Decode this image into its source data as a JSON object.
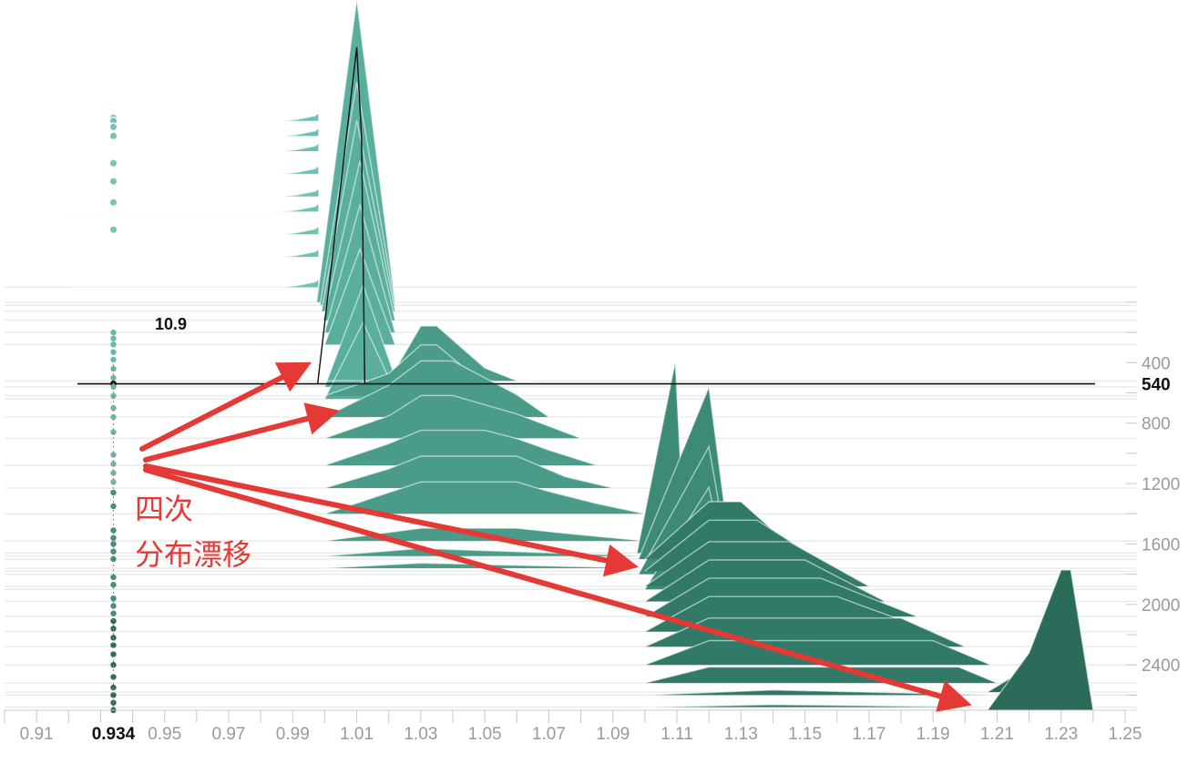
{
  "chart_data": {
    "type": "area",
    "title": "",
    "xlabel": "",
    "ylabel": "",
    "x_ticks": [
      "0.91",
      "0.934",
      "0.95",
      "0.97",
      "0.99",
      "1.01",
      "1.03",
      "1.05",
      "1.07",
      "1.09",
      "1.11",
      "1.13",
      "1.15",
      "1.17",
      "1.19",
      "1.21",
      "1.23",
      "1.25"
    ],
    "x_tick_values": [
      0.91,
      0.934,
      0.95,
      0.97,
      0.99,
      1.01,
      1.03,
      1.05,
      1.07,
      1.09,
      1.11,
      1.13,
      1.15,
      1.17,
      1.19,
      1.21,
      1.23,
      1.25
    ],
    "xlim": [
      0.9,
      1.25
    ],
    "y_ticks": [
      "400",
      "540",
      "800",
      "1200",
      "1600",
      "2000",
      "2400"
    ],
    "y_tick_values": [
      400,
      540,
      800,
      1200,
      1600,
      2000,
      2400
    ],
    "ylim": [
      -2000,
      2700
    ],
    "y_reversed": true,
    "hover": {
      "x": 0.934,
      "y": 540,
      "value_label": "10.9",
      "x_label": "0.934",
      "y_label": "540"
    },
    "groups": [
      {
        "name": "g1",
        "color": "#6ec0b1",
        "layers": [
          {
            "step": -1200,
            "x": [
              0.92,
              0.987,
              0.991,
              0.997,
              0.998
            ],
            "y": [
              0,
              0,
              0.2,
              0.8,
              1.2
            ]
          },
          {
            "step": -1100,
            "x": [
              0.92,
              0.987,
              0.991,
              0.997,
              0.998
            ],
            "y": [
              0,
              0,
              0.2,
              0.8,
              1.2
            ]
          },
          {
            "step": -1000,
            "x": [
              0.92,
              0.987,
              0.991,
              0.997,
              0.998
            ],
            "y": [
              0,
              0,
              0.2,
              0.8,
              1.2
            ]
          },
          {
            "step": -850,
            "x": [
              0.92,
              0.987,
              0.991,
              0.997,
              0.998
            ],
            "y": [
              0,
              0,
              0.2,
              0.8,
              1.2
            ]
          },
          {
            "step": -700,
            "x": [
              0.92,
              0.987,
              0.991,
              0.997,
              0.998
            ],
            "y": [
              0,
              0,
              0.2,
              0.8,
              1.2
            ]
          },
          {
            "step": -600,
            "x": [
              0.92,
              0.987,
              0.991,
              0.997,
              0.998
            ],
            "y": [
              0,
              0,
              0.2,
              0.8,
              1.2
            ]
          },
          {
            "step": -450,
            "x": [
              0.92,
              0.987,
              0.991,
              0.997,
              0.998
            ],
            "y": [
              0,
              0,
              0.2,
              0.8,
              1.2
            ]
          },
          {
            "step": -300,
            "x": [
              0.92,
              0.987,
              0.991,
              0.997,
              0.998
            ],
            "y": [
              0,
              0,
              0.2,
              0.8,
              1.2
            ]
          },
          {
            "step": -100,
            "x": [
              0.92,
              0.987,
              0.991,
              0.997,
              0.998
            ],
            "y": [
              0,
              0,
              0.2,
              0.8,
              1.2
            ]
          }
        ]
      },
      {
        "name": "g2",
        "color": "#5aae9c",
        "layers": [
          {
            "step": 0,
            "x": [
              0.9975,
              1.01,
              1.022
            ],
            "y": [
              0,
              47.5,
              0
            ]
          },
          {
            "step": 20,
            "x": [
              0.9985,
              1.01,
              1.022
            ],
            "y": [
              0,
              35,
              0
            ]
          },
          {
            "step": 60,
            "x": [
              0.999,
              1.01,
              1.022
            ],
            "y": [
              0,
              30,
              0
            ]
          },
          {
            "step": 120,
            "x": [
              0.9995,
              1.011,
              1.022
            ],
            "y": [
              0,
              25,
              0
            ]
          },
          {
            "step": 200,
            "x": [
              1.0,
              1.011,
              1.022
            ],
            "y": [
              0,
              20,
              0
            ]
          },
          {
            "step": 280,
            "x": [
              1.0,
              1.011,
              1.022
            ],
            "y": [
              0,
              15,
              0
            ]
          },
          {
            "step": 560,
            "x": [
              1.0,
              1.012,
              1.023,
              1.025
            ],
            "y": [
              0,
              16,
              0,
              0
            ]
          },
          {
            "step": 640,
            "x": [
              1.0,
              1.012,
              1.023,
              1.025
            ],
            "y": [
              0,
              12,
              0,
              0
            ]
          }
        ]
      },
      {
        "name": "g3",
        "color": "#4a9c89",
        "layers": [
          {
            "step": 520,
            "x": [
              1.0,
              1.02,
              1.03,
              1.035,
              1.05,
              1.06,
              1.065
            ],
            "y": [
              0,
              0,
              8.6,
              8.6,
              2.0,
              0,
              0
            ]
          },
          {
            "step": 620,
            "x": [
              1.0,
              1.02,
              1.03,
              1.035,
              1.05,
              1.06
            ],
            "y": [
              0,
              3.5,
              8.0,
              8.0,
              1.7,
              0
            ]
          },
          {
            "step": 760,
            "x": [
              1.0,
              1.02,
              1.03,
              1.04,
              1.06,
              1.07
            ],
            "y": [
              0,
              5.0,
              8.8,
              8.8,
              3.5,
              0
            ]
          },
          {
            "step": 900,
            "x": [
              1.0,
              1.02,
              1.03,
              1.04,
              1.06,
              1.08
            ],
            "y": [
              0,
              3.5,
              6.7,
              6.7,
              3.8,
              0
            ]
          },
          {
            "step": 1080,
            "x": [
              1.0,
              1.02,
              1.03,
              1.05,
              1.06,
              1.07,
              1.085
            ],
            "y": [
              0,
              3.4,
              5.5,
              5.5,
              4.2,
              2.4,
              0
            ]
          },
          {
            "step": 1230,
            "x": [
              1.0,
              1.02,
              1.03,
              1.06,
              1.075,
              1.09
            ],
            "y": [
              0,
              3.0,
              5.0,
              5.0,
              1.8,
              0
            ]
          },
          {
            "step": 1400,
            "x": [
              1.0,
              1.03,
              1.06,
              1.07,
              1.085,
              1.1
            ],
            "y": [
              0,
              5.0,
              5.0,
              3.5,
              1.6,
              0
            ]
          },
          {
            "step": 1580,
            "x": [
              1.0,
              1.03,
              1.06,
              1.075,
              1.1
            ],
            "y": [
              0,
              2.0,
              2.0,
              1.2,
              0
            ]
          },
          {
            "step": 1680,
            "x": [
              1.0,
              1.03,
              1.1
            ],
            "y": [
              0,
              1.2,
              0
            ]
          },
          {
            "step": 1760,
            "x": [
              1.0,
              1.03,
              1.1
            ],
            "y": [
              0,
              0.8,
              0
            ]
          }
        ]
      },
      {
        "name": "g4",
        "color": "#3d8a77",
        "layers": [
          {
            "step": 1660,
            "x": [
              1.0975,
              1.1095,
              1.1125
            ],
            "y": [
              0,
              30,
              0
            ]
          },
          {
            "step": 1700,
            "x": [
              1.098,
              1.12,
              1.127
            ],
            "y": [
              0,
              27,
              0
            ]
          },
          {
            "step": 1800,
            "x": [
              1.098,
              1.12,
              1.127
            ],
            "y": [
              0,
              20,
              0
            ]
          },
          {
            "step": 1900,
            "x": [
              1.1,
              1.12,
              1.127
            ],
            "y": [
              0,
              16,
              0
            ]
          }
        ]
      },
      {
        "name": "g5",
        "color": "#327a68",
        "layers": [
          {
            "step": 1700,
            "x": [
              1.1,
              1.12,
              1.13,
              1.15
            ],
            "y": [
              0,
              9.0,
              9.0,
              0
            ]
          },
          {
            "step": 1780,
            "x": [
              1.1,
              1.12,
              1.135,
              1.16
            ],
            "y": [
              0,
              8.0,
              8.0,
              0
            ]
          },
          {
            "step": 1880,
            "x": [
              1.1,
              1.12,
              1.145,
              1.17
            ],
            "y": [
              0,
              7.0,
              7.0,
              0
            ]
          },
          {
            "step": 1980,
            "x": [
              1.1,
              1.12,
              1.15,
              1.175
            ],
            "y": [
              0,
              6.5,
              6.5,
              0
            ]
          },
          {
            "step": 2080,
            "x": [
              1.1,
              1.12,
              1.155,
              1.185
            ],
            "y": [
              0,
              6.0,
              6.0,
              0
            ]
          },
          {
            "step": 2180,
            "x": [
              1.1,
              1.12,
              1.16,
              1.19
            ],
            "y": [
              0,
              5.5,
              5.5,
              0
            ]
          },
          {
            "step": 2280,
            "x": [
              1.1,
              1.12,
              1.18,
              1.2
            ],
            "y": [
              0,
              4.5,
              4.5,
              0
            ]
          },
          {
            "step": 2400,
            "x": [
              1.1,
              1.12,
              1.19,
              1.208
            ],
            "y": [
              0,
              3.8,
              3.8,
              0
            ]
          },
          {
            "step": 2520,
            "x": [
              1.1,
              1.12,
              1.198,
              1.21
            ],
            "y": [
              0,
              2.5,
              2.5,
              0
            ]
          },
          {
            "step": 2600,
            "x": [
              1.1,
              1.14,
              1.21
            ],
            "y": [
              0,
              0.8,
              0
            ]
          },
          {
            "step": 2680,
            "x": [
              1.1,
              1.14,
              1.21
            ],
            "y": [
              0,
              0.4,
              0
            ]
          }
        ]
      },
      {
        "name": "g6",
        "color": "#2a6b5a",
        "layers": [
          {
            "step": 2580,
            "x": [
              1.207,
              1.22,
              1.2295,
              1.236
            ],
            "y": [
              0,
              4.0,
              13.8,
              0
            ]
          },
          {
            "step": 2700,
            "x": [
              1.207,
              1.22,
              1.23,
              1.233,
              1.24
            ],
            "y": [
              0,
              9.0,
              22.0,
              22.0,
              0
            ]
          }
        ]
      }
    ],
    "rug_steps": [
      200,
      240,
      280,
      330,
      380,
      440,
      500,
      560,
      620,
      700,
      760,
      860,
      1010,
      1070,
      1130,
      1190,
      1260,
      1350,
      1510,
      1560,
      1600,
      1650,
      1700,
      1820,
      1870,
      1960,
      2010,
      2060,
      2110,
      2160,
      2220,
      2270,
      2330,
      2400,
      2480,
      2550,
      2600,
      2650,
      2700,
      2750
    ],
    "rug_hollow_steps": [
      -1220,
      -1200,
      -1160,
      -1100,
      -920,
      -800,
      -660,
      -480
    ],
    "annotation": {
      "lines": [
        "四次",
        "分布漂移"
      ]
    },
    "grid": true,
    "legend": "none"
  }
}
